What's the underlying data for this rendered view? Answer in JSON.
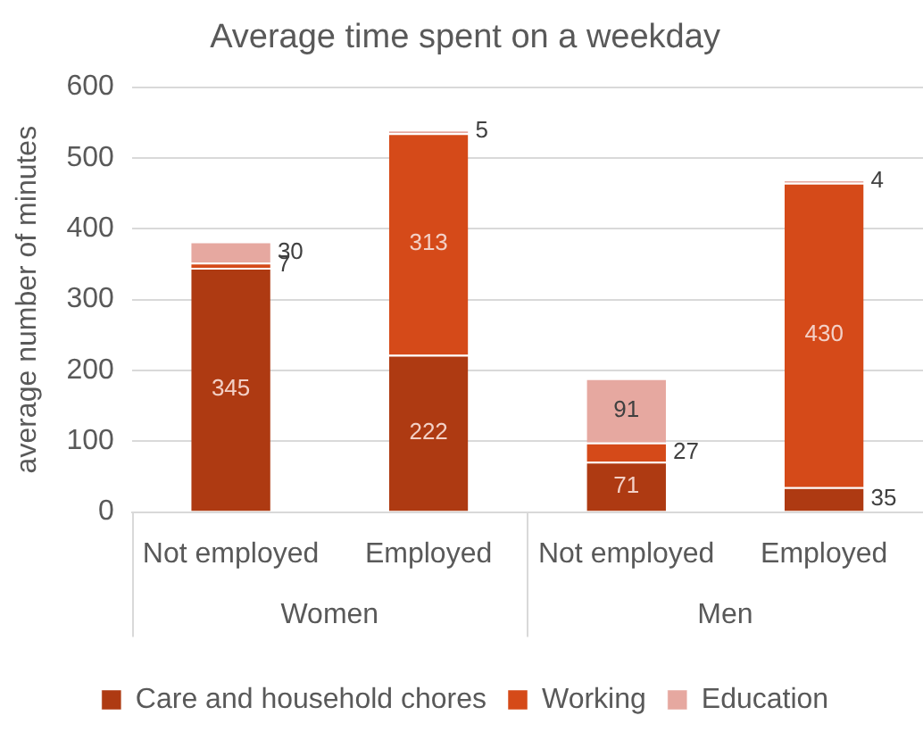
{
  "chart_data": {
    "type": "bar",
    "title": "Average time spent on a weekday",
    "ylabel": "average number of minutes",
    "categories": [
      "Not employed",
      "Employed",
      "Not employed",
      "Employed"
    ],
    "annotations": [
      "Women",
      "Men"
    ],
    "stacked": true,
    "series": [
      {
        "name": "Care and household chores",
        "color": "#ae3a12",
        "values": [
          345,
          222,
          71,
          35
        ]
      },
      {
        "name": "Working",
        "color": "#d54a19",
        "values": [
          7,
          313,
          27,
          430
        ]
      },
      {
        "name": "Education",
        "color": "#e6a8a0",
        "values": [
          30,
          5,
          91,
          4
        ]
      }
    ],
    "ylim": [
      0,
      600
    ],
    "yticks": [
      0,
      100,
      200,
      300,
      400,
      500,
      600
    ],
    "grid": "y",
    "legend": "bottom",
    "data_labels": true
  }
}
